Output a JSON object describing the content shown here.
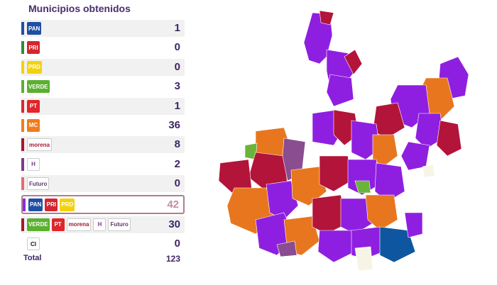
{
  "panel": {
    "title": "Municipios obtenidos",
    "total_label": "Total",
    "total_value": "123"
  },
  "rows": [
    {
      "bar_color": "#1f4fa3",
      "logos": [
        {
          "name": "pan-logo",
          "text": "PAN",
          "bg": "#1f4fa3"
        }
      ],
      "value": "1"
    },
    {
      "bar_color": "#2e8b3a",
      "logos": [
        {
          "name": "pri-logo",
          "text": "PRI",
          "bg": "#d4262e"
        }
      ],
      "value": "0"
    },
    {
      "bar_color": "#f4d20b",
      "logos": [
        {
          "name": "prd-logo",
          "text": "PRD",
          "bg": "#f4d20b"
        }
      ],
      "value": "0"
    },
    {
      "bar_color": "#5bb030",
      "logos": [
        {
          "name": "verde-logo",
          "text": "VERDE",
          "bg": "#5bb030"
        }
      ],
      "value": "3"
    },
    {
      "bar_color": "#e0262a",
      "logos": [
        {
          "name": "pt-logo",
          "text": "PT",
          "bg": "#e0262a"
        }
      ],
      "value": "1"
    },
    {
      "bar_color": "#f07d1a",
      "logos": [
        {
          "name": "mc-logo",
          "text": "MC",
          "bg": "#f07d1a"
        }
      ],
      "value": "36"
    },
    {
      "bar_color": "#a11b2f",
      "logos": [
        {
          "name": "morena-logo",
          "text": "morena",
          "bg": "#ffffff",
          "color": "#a11b2f"
        }
      ],
      "value": "8"
    },
    {
      "bar_color": "#7b3b8c",
      "logos": [
        {
          "name": "hagamos-logo",
          "text": "H",
          "bg": "#ffffff",
          "color": "#7b3b8c"
        }
      ],
      "value": "2"
    },
    {
      "bar_color": "#e86a74",
      "logos": [
        {
          "name": "futuro-logo",
          "text": "Futuro",
          "bg": "#ffffff",
          "color": "#5a3d6e"
        }
      ],
      "value": "0"
    },
    {
      "bar_color": "#8a2be2",
      "highlight": true,
      "logos": [
        {
          "name": "pan-logo",
          "text": "PAN",
          "bg": "#1f4fa3"
        },
        {
          "name": "pri-logo",
          "text": "PRI",
          "bg": "#d4262e"
        },
        {
          "name": "prd-logo",
          "text": "PRD",
          "bg": "#f4d20b"
        }
      ],
      "value": "42"
    },
    {
      "bar_color": "#a11b2f",
      "logos": [
        {
          "name": "verde-logo",
          "text": "VERDE",
          "bg": "#5bb030"
        },
        {
          "name": "pt-logo",
          "text": "PT",
          "bg": "#e0262a"
        },
        {
          "name": "morena-logo",
          "text": "morena",
          "bg": "#ffffff",
          "color": "#a11b2f"
        },
        {
          "name": "hagamos-logo",
          "text": "H",
          "bg": "#ffffff",
          "color": "#7b3b8c"
        },
        {
          "name": "futuro-logo",
          "text": "Futuro",
          "bg": "#ffffff",
          "color": "#5a3d6e"
        }
      ],
      "value": "30"
    },
    {
      "bar_color": "#ffffff",
      "logos": [
        {
          "name": "ci-logo",
          "text": "CI",
          "bg": "#ffffff",
          "color": "#111111"
        }
      ],
      "value": "0"
    }
  ],
  "chart_data": {
    "type": "table",
    "title": "Municipios obtenidos",
    "categories": [
      "PAN",
      "PRI",
      "PRD",
      "VERDE",
      "PT",
      "MC",
      "morena",
      "H",
      "Futuro",
      "PAN-PRI-PRD",
      "VERDE-PT-morena-H-Futuro",
      "CI"
    ],
    "values": [
      1,
      0,
      0,
      3,
      1,
      36,
      8,
      2,
      0,
      42,
      30,
      0
    ],
    "total": 123
  },
  "map": {
    "colors": {
      "mc": "#e8761f",
      "pan_pri_prd": "#8f1fe0",
      "verde_pt_morena": "#b3143a",
      "pt": "#c41a1a",
      "verde": "#6ab43a",
      "pan": "#0e57a0",
      "hagamos": "#8a4d8f",
      "ci": "#f7f3e6"
    }
  }
}
